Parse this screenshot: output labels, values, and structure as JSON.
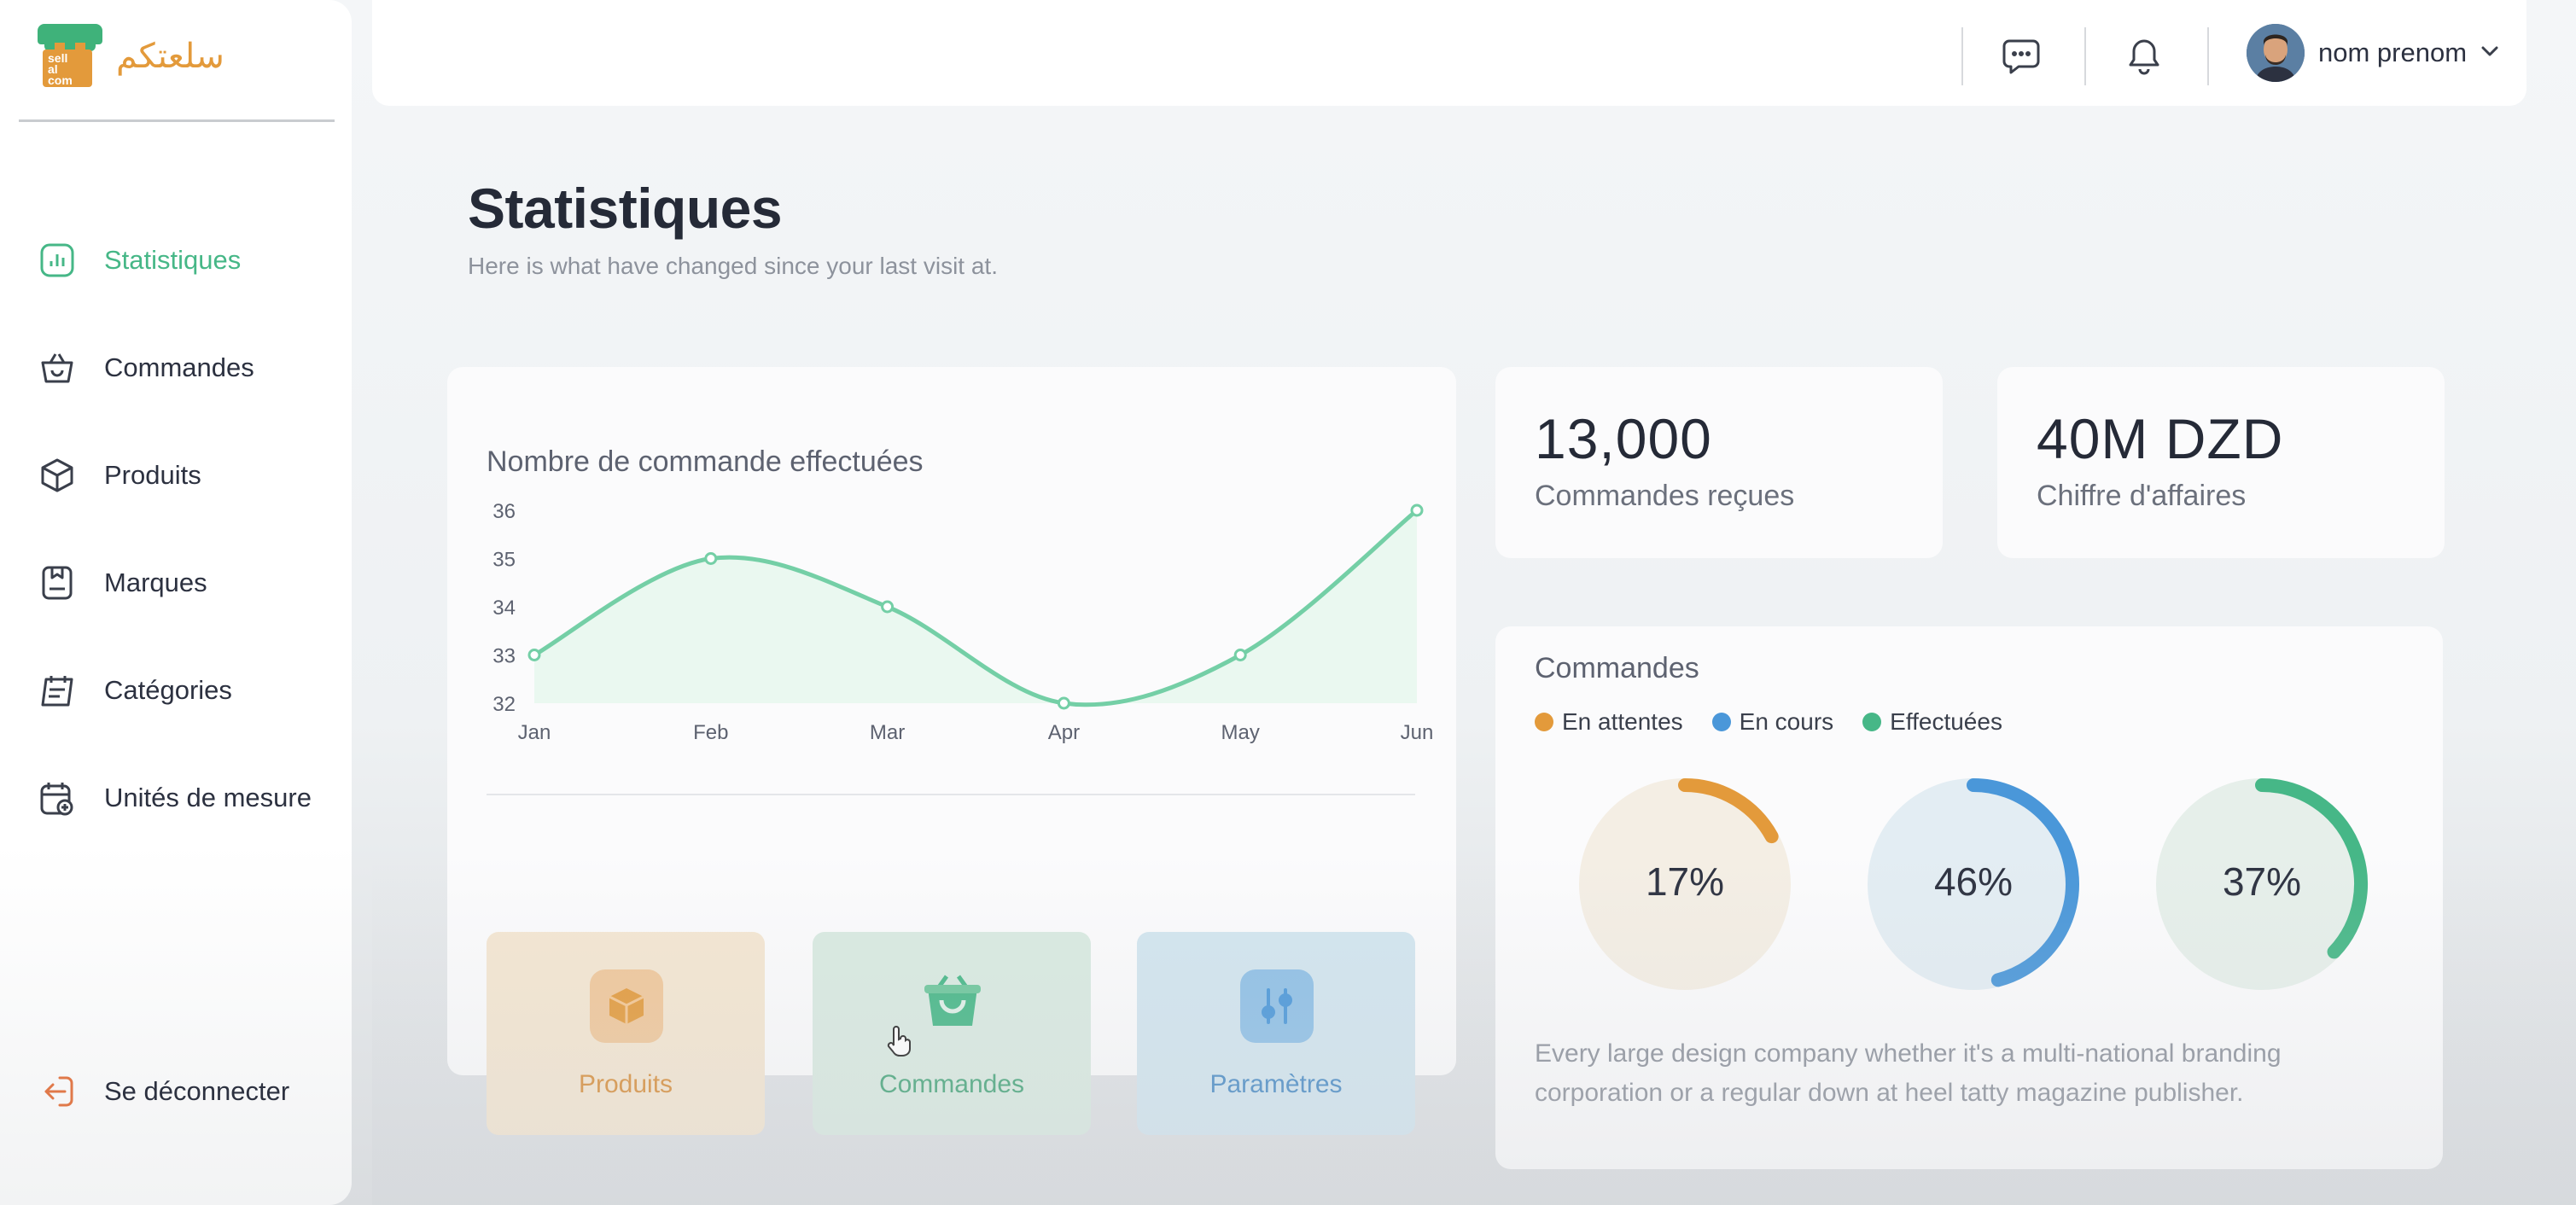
{
  "brand": {
    "logo_text": "سلعتكم",
    "logo_mark": "sell\nal\ncom"
  },
  "sidebar": {
    "items": [
      {
        "label": "Statistiques",
        "icon": "bar-chart-icon",
        "active": true
      },
      {
        "label": "Commandes",
        "icon": "basket-icon",
        "active": false
      },
      {
        "label": "Produits",
        "icon": "box-icon",
        "active": false
      },
      {
        "label": "Marques",
        "icon": "brand-tag-icon",
        "active": false
      },
      {
        "label": "Catégories",
        "icon": "category-icon",
        "active": false
      },
      {
        "label": "Unités de mesure",
        "icon": "calendar-unit-icon",
        "active": false
      }
    ],
    "logout_label": "Se déconnecter"
  },
  "header": {
    "user_name": "nom prenom"
  },
  "page": {
    "title": "Statistiques",
    "subtitle": "Here is what have changed since your last visit at."
  },
  "stats": [
    {
      "value": "13,000",
      "label": "Commandes reçues"
    },
    {
      "value": "40M DZD",
      "label": "Chiffre d'affaires"
    }
  ],
  "line_chart": {
    "title": "Nombre de commande effectuées"
  },
  "chart_data": {
    "type": "area",
    "title": "Nombre de commande effectuées",
    "categories": [
      "Jan",
      "Feb",
      "Mar",
      "Apr",
      "May",
      "Jun"
    ],
    "values": [
      33,
      35,
      34,
      32,
      33,
      36
    ],
    "yticks": [
      32,
      33,
      34,
      35,
      36
    ],
    "ylim": [
      32,
      36
    ],
    "color": "#74cfa6"
  },
  "quick_actions": [
    {
      "label": "Produits",
      "icon": "box-icon",
      "color": "#e39a3b"
    },
    {
      "label": "Commandes",
      "icon": "basket-icon",
      "color": "#46b787"
    },
    {
      "label": "Paramètres",
      "icon": "sliders-icon",
      "color": "#4a97d9"
    }
  ],
  "orders": {
    "title": "Commandes",
    "legend": [
      {
        "label": "En attentes",
        "color": "#e39a3b"
      },
      {
        "label": "En cours",
        "color": "#4a97d9"
      },
      {
        "label": "Effectuées",
        "color": "#46b787"
      }
    ],
    "donuts": [
      {
        "value": "17%",
        "fraction": 0.17,
        "color": "#e39a3b",
        "bg": "#f4eee4"
      },
      {
        "value": "46%",
        "fraction": 0.46,
        "color": "#4a97d9",
        "bg": "#e3edf3"
      },
      {
        "value": "37%",
        "fraction": 0.37,
        "color": "#46b787",
        "bg": "#e6efea"
      }
    ],
    "description": "Every large design company whether it's a multi-national branding corporation or a regular down at heel tatty magazine publisher."
  }
}
